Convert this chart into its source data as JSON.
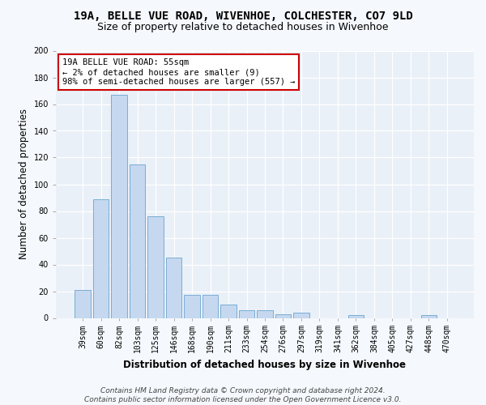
{
  "title1": "19A, BELLE VUE ROAD, WIVENHOE, COLCHESTER, CO7 9LD",
  "title2": "Size of property relative to detached houses in Wivenhoe",
  "xlabel": "Distribution of detached houses by size in Wivenhoe",
  "ylabel": "Number of detached properties",
  "categories": [
    "39sqm",
    "60sqm",
    "82sqm",
    "103sqm",
    "125sqm",
    "146sqm",
    "168sqm",
    "190sqm",
    "211sqm",
    "233sqm",
    "254sqm",
    "276sqm",
    "297sqm",
    "319sqm",
    "341sqm",
    "362sqm",
    "384sqm",
    "405sqm",
    "427sqm",
    "448sqm",
    "470sqm"
  ],
  "values": [
    21,
    89,
    167,
    115,
    76,
    45,
    17,
    17,
    10,
    6,
    6,
    3,
    4,
    0,
    0,
    2,
    0,
    0,
    0,
    2,
    0
  ],
  "bar_color": "#c5d8ef",
  "bar_edge_color": "#7aadd4",
  "annotation_box_color": "#ffffff",
  "annotation_border_color": "#cc0000",
  "annotation_text_line1": "19A BELLE VUE ROAD: 55sqm",
  "annotation_text_line2": "← 2% of detached houses are smaller (9)",
  "annotation_text_line3": "98% of semi-detached houses are larger (557) →",
  "footer1": "Contains HM Land Registry data © Crown copyright and database right 2024.",
  "footer2": "Contains public sector information licensed under the Open Government Licence v3.0.",
  "ylim": [
    0,
    200
  ],
  "yticks": [
    0,
    20,
    40,
    60,
    80,
    100,
    120,
    140,
    160,
    180,
    200
  ],
  "background_color": "#eaf0f8",
  "grid_color": "#ffffff",
  "fig_bg_color": "#f5f8fc",
  "title_fontsize": 10,
  "subtitle_fontsize": 9,
  "axis_label_fontsize": 8.5,
  "tick_fontsize": 7,
  "annotation_fontsize": 7.5,
  "footer_fontsize": 6.5
}
